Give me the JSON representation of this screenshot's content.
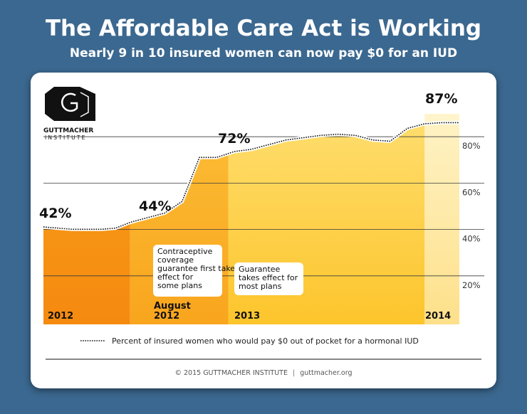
{
  "header": {
    "title": "The Affordable Care Act is Working",
    "subtitle": "Nearly 9 in 10 insured women can now pay $0 for an IUD"
  },
  "logo": {
    "name": "GUTTMACHER",
    "tagline": "INSTITUTE"
  },
  "chart_data": {
    "type": "area",
    "title": "The Affordable Care Act is Working",
    "subtitle": "Nearly 9 in 10 insured women can now pay $0 for an IUD",
    "xlabel": "",
    "ylabel": "",
    "ylim": [
      0,
      100
    ],
    "yticks": [
      20,
      40,
      60,
      80
    ],
    "ytick_labels": [
      "20%",
      "40%",
      "60%",
      "80%"
    ],
    "grid": true,
    "legend": "bottom",
    "series": [
      {
        "name": "Percent of insured women who would pay $0 out of pocket for a hormonal IUD",
        "x": [
          0,
          0.5,
          1,
          1.5,
          2,
          2.5,
          3,
          3.6,
          4.2,
          4.8,
          5.4,
          6.0,
          6.6,
          7.2,
          7.8,
          8.4,
          9.0,
          9.6,
          10.2,
          10.8,
          11.4,
          12.0,
          12.6,
          13.2,
          13.8,
          14.4
        ],
        "values": [
          42,
          41.5,
          41,
          41,
          41,
          41.5,
          44,
          46,
          48,
          53,
          72,
          72,
          74.5,
          75.5,
          77.5,
          79.5,
          80.5,
          81.5,
          82,
          81.5,
          79.5,
          79,
          84.5,
          86.5,
          87,
          87
        ]
      }
    ],
    "periods": [
      {
        "label": "2012",
        "x_start": 0,
        "x_end": 3,
        "color": "#f7941d"
      },
      {
        "label": "August 2012",
        "x_start": 3,
        "x_end": 6.4,
        "color": "#fbb03b"
      },
      {
        "label": "2013",
        "x_start": 6.4,
        "x_end": 13.2,
        "color": "#ffd24a"
      },
      {
        "label": "2014",
        "x_start": 13.2,
        "x_end": 14.4,
        "color": "#fde9a6"
      }
    ],
    "value_labels": [
      "42%",
      "44%",
      "72%",
      "87%"
    ],
    "annotations": [
      "Contraceptive coverage guarantee first takes effect for some plans",
      "Guarantee takes effect for most plans"
    ]
  },
  "footer": {
    "copyright": "© 2015 GUTTMACHER INSTITUTE",
    "separator": "|",
    "website": "guttmacher.org"
  }
}
